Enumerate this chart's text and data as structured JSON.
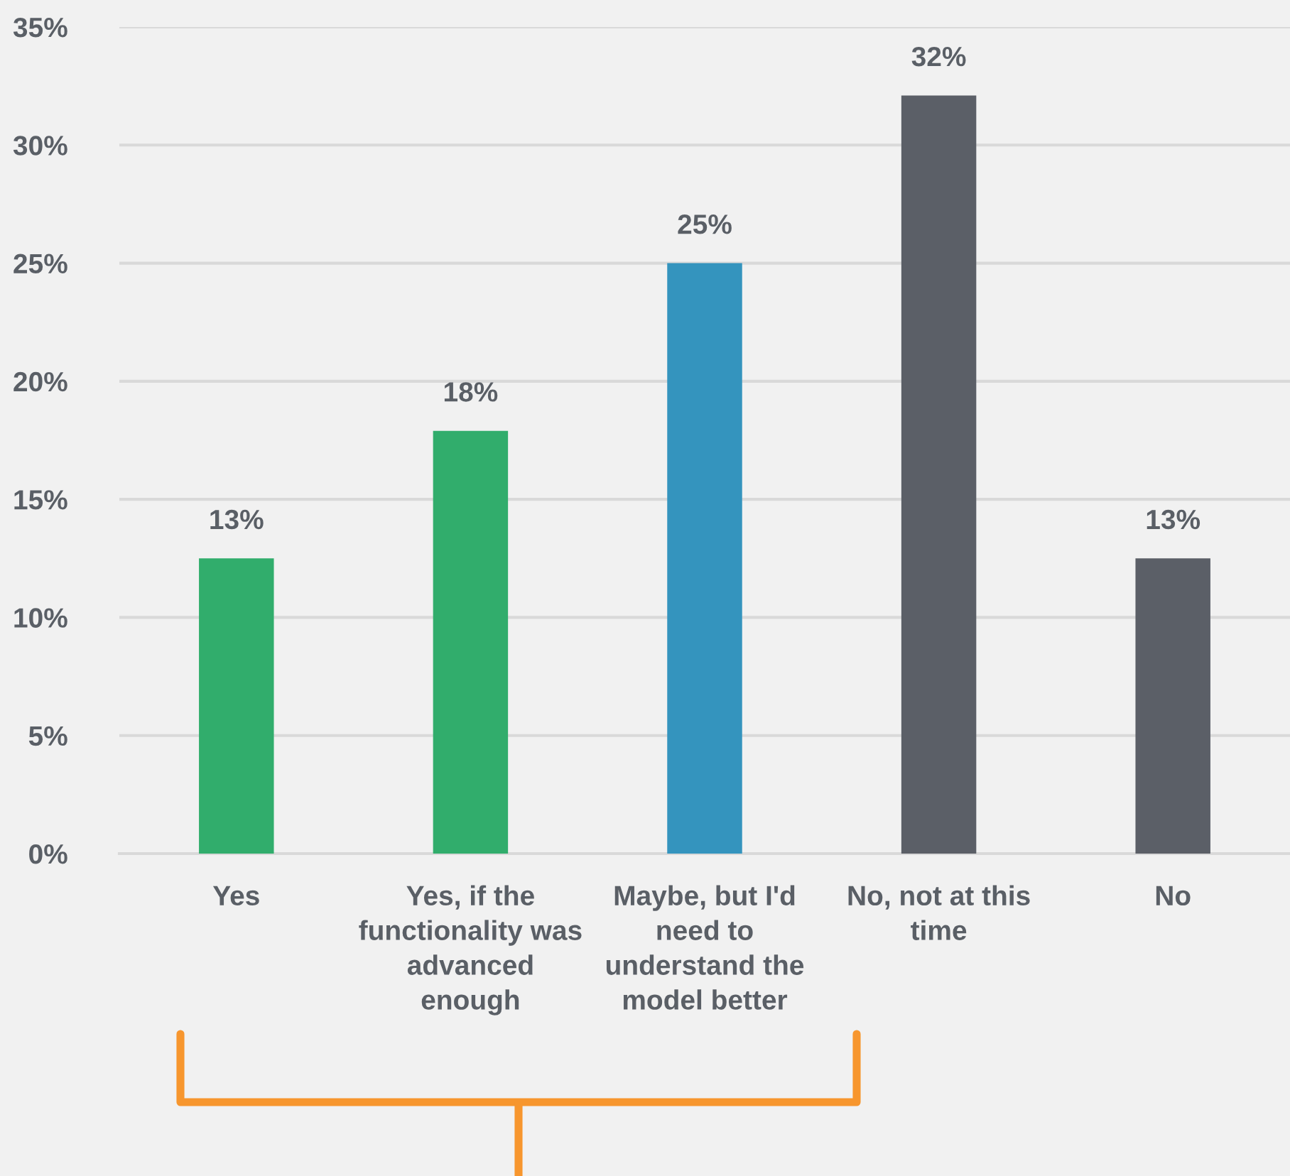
{
  "chart_data": {
    "type": "bar",
    "categories": [
      "Yes",
      "Yes, if the\nfunctionality was\nadvanced\nenough",
      "Maybe, but I'd\nneed to\nunderstand the\nmodel better",
      "No, not at this\ntime",
      "No"
    ],
    "values": [
      12.5,
      17.9,
      25.0,
      32.1,
      12.5
    ],
    "colors": [
      "#31ad6c",
      "#31ad6c",
      "#3494be",
      "#5b5f67",
      "#5b5f67"
    ],
    "value_labels": [
      "13%",
      "18%",
      "25%",
      "32%",
      "13%"
    ],
    "ylim": [
      0,
      35
    ],
    "yticks": [
      {
        "value": 0,
        "label": "0%"
      },
      {
        "value": 5,
        "label": "5%"
      },
      {
        "value": 10,
        "label": "10%"
      },
      {
        "value": 15,
        "label": "15%"
      },
      {
        "value": 20,
        "label": "20%"
      },
      {
        "value": 25,
        "label": "25%"
      },
      {
        "value": 30,
        "label": "30%"
      },
      {
        "value": 35,
        "label": "35%"
      }
    ],
    "grid": "y",
    "legend": false
  }
}
